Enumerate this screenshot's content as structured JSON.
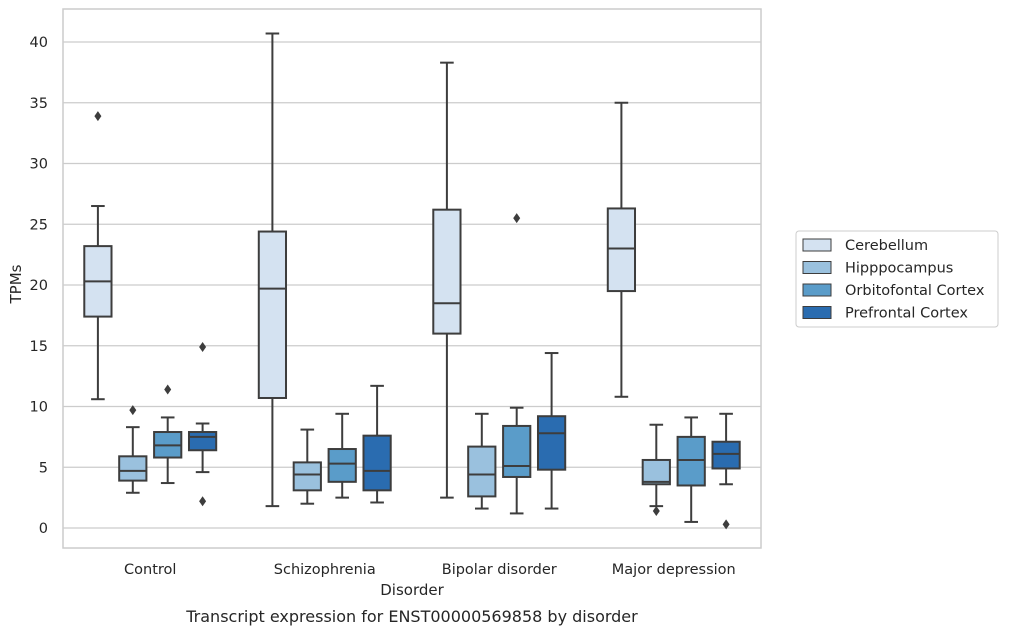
{
  "chart_data": {
    "type": "box",
    "title": "",
    "caption": "Transcript expression for ENST00000569858 by disorder",
    "xlabel": "Disorder",
    "ylabel": "TPMs",
    "ylim": [
      -1.6,
      42.8
    ],
    "yticks": [
      0,
      5,
      10,
      15,
      20,
      25,
      30,
      35,
      40
    ],
    "grid": true,
    "legend_position": "right",
    "categories": [
      "Control",
      "Schizophrenia",
      "Bipolar disorder",
      "Major depression"
    ],
    "series": [
      {
        "name": "Cerebellum",
        "color": "#d4e2f1",
        "boxes": [
          {
            "whislo": 10.6,
            "q1": 17.4,
            "med": 20.3,
            "q3": 23.2,
            "whishi": 26.5,
            "fliers": [
              33.9
            ]
          },
          {
            "whislo": 1.8,
            "q1": 10.7,
            "med": 19.7,
            "q3": 24.4,
            "whishi": 40.7,
            "fliers": []
          },
          {
            "whislo": 2.5,
            "q1": 16.0,
            "med": 18.5,
            "q3": 26.2,
            "whishi": 38.3,
            "fliers": []
          },
          {
            "whislo": 10.8,
            "q1": 19.5,
            "med": 23.0,
            "q3": 26.3,
            "whishi": 35.0,
            "fliers": []
          }
        ]
      },
      {
        "name": "Hipppocampus",
        "color": "#9ac1de",
        "boxes": [
          {
            "whislo": 2.9,
            "q1": 3.9,
            "med": 4.7,
            "q3": 5.9,
            "whishi": 8.3,
            "fliers": [
              9.7
            ]
          },
          {
            "whislo": 2.0,
            "q1": 3.1,
            "med": 4.4,
            "q3": 5.4,
            "whishi": 8.1,
            "fliers": []
          },
          {
            "whislo": 1.6,
            "q1": 2.6,
            "med": 4.4,
            "q3": 6.7,
            "whishi": 9.4,
            "fliers": []
          },
          {
            "whislo": 1.8,
            "q1": 3.6,
            "med": 3.8,
            "q3": 5.6,
            "whishi": 8.5,
            "fliers": [
              1.4
            ]
          }
        ]
      },
      {
        "name": "Orbitofontal Cortex",
        "color": "#5a9cc9",
        "boxes": [
          {
            "whislo": 3.7,
            "q1": 5.8,
            "med": 6.8,
            "q3": 7.9,
            "whishi": 9.1,
            "fliers": [
              11.4
            ]
          },
          {
            "whislo": 2.5,
            "q1": 3.8,
            "med": 5.3,
            "q3": 6.5,
            "whishi": 9.4,
            "fliers": []
          },
          {
            "whislo": 1.2,
            "q1": 4.2,
            "med": 5.1,
            "q3": 8.4,
            "whishi": 9.9,
            "fliers": [
              25.5
            ]
          },
          {
            "whislo": 0.5,
            "q1": 3.5,
            "med": 5.6,
            "q3": 7.5,
            "whishi": 9.1,
            "fliers": []
          }
        ]
      },
      {
        "name": "Prefrontal Cortex",
        "color": "#2a6cb0",
        "boxes": [
          {
            "whislo": 4.6,
            "q1": 6.4,
            "med": 7.5,
            "q3": 7.9,
            "whishi": 8.6,
            "fliers": [
              2.2,
              14.9
            ]
          },
          {
            "whislo": 2.1,
            "q1": 3.1,
            "med": 4.7,
            "q3": 7.6,
            "whishi": 11.7,
            "fliers": []
          },
          {
            "whislo": 1.6,
            "q1": 4.8,
            "med": 7.8,
            "q3": 9.2,
            "whishi": 14.4,
            "fliers": []
          },
          {
            "whislo": 3.6,
            "q1": 4.9,
            "med": 6.1,
            "q3": 7.1,
            "whishi": 9.4,
            "fliers": [
              0.3
            ]
          }
        ]
      }
    ]
  }
}
